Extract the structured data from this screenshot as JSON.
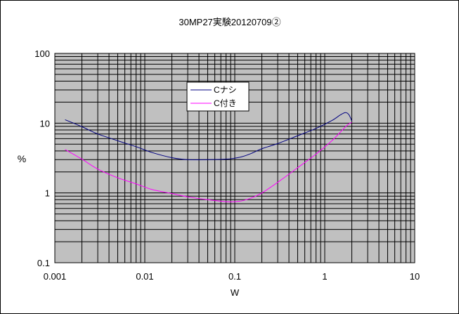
{
  "chart_data": {
    "type": "line",
    "title": "30MP27実験20120709②",
    "xlabel": "W",
    "ylabel": "%",
    "xscale": "log",
    "yscale": "log",
    "xlim": [
      0.001,
      10
    ],
    "ylim": [
      0.1,
      100
    ],
    "x_tick_labels": [
      "0.001",
      "0.01",
      "0.1",
      "1",
      "10"
    ],
    "y_tick_labels": [
      "0.1",
      "1",
      "10",
      "100"
    ],
    "grid": true,
    "legend_position": "upper-center",
    "plot_background": "#c0c0c0",
    "series": [
      {
        "name": "Cナシ",
        "color": "#000080",
        "x": [
          0.0013,
          0.002,
          0.003,
          0.005,
          0.008,
          0.012,
          0.02,
          0.03,
          0.05,
          0.08,
          0.1,
          0.12,
          0.15,
          0.2,
          0.3,
          0.5,
          0.8,
          1.2,
          1.5,
          1.7,
          1.85,
          2.0
        ],
        "y": [
          11.2,
          8.9,
          7.0,
          5.6,
          4.6,
          3.8,
          3.2,
          3.0,
          3.0,
          3.05,
          3.15,
          3.3,
          3.65,
          4.3,
          5.1,
          6.6,
          8.4,
          10.9,
          13.2,
          14.2,
          13.3,
          10.8
        ]
      },
      {
        "name": "C付き",
        "color": "#ff00ff",
        "x": [
          0.0013,
          0.002,
          0.003,
          0.005,
          0.008,
          0.012,
          0.02,
          0.03,
          0.05,
          0.08,
          0.1,
          0.12,
          0.15,
          0.2,
          0.3,
          0.5,
          0.8,
          1.2,
          1.5,
          1.8,
          2.0
        ],
        "y": [
          4.2,
          3.05,
          2.2,
          1.65,
          1.35,
          1.12,
          0.98,
          0.88,
          0.8,
          0.75,
          0.75,
          0.77,
          0.84,
          1.0,
          1.42,
          2.3,
          3.6,
          5.6,
          7.5,
          9.5,
          10.3
        ]
      }
    ]
  }
}
